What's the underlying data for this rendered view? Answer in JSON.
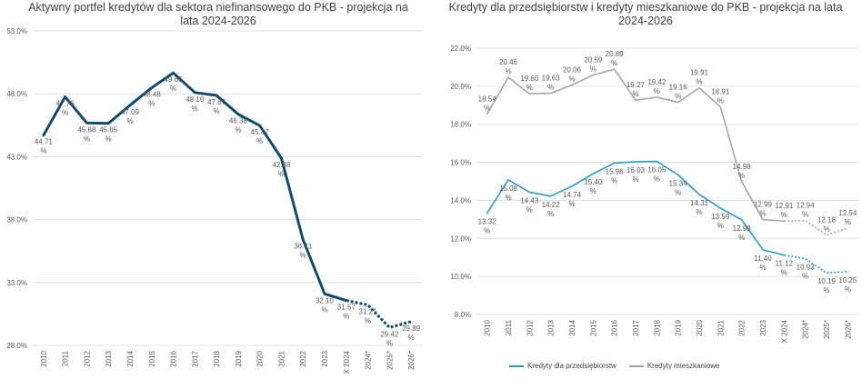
{
  "chart_data": [
    {
      "type": "line",
      "title": "Aktywny portfel kredytów dla sektora niefinansowego do PKB - projekcja na lata 2024-2026",
      "categories": [
        "2010",
        "2011",
        "2012",
        "2013",
        "2014",
        "2015",
        "2016",
        "2017",
        "2018",
        "2019",
        "2020",
        "2021",
        "2022",
        "2023",
        "X 2024",
        "2024*",
        "2025*",
        "2026*"
      ],
      "series": [
        {
          "values": [
            44.71,
            47.76,
            45.68,
            45.65,
            47.09,
            48.48,
            49.66,
            48.1,
            47.87,
            46.38,
            45.47,
            42.88,
            36.41,
            32.1,
            31.57,
            31.21,
            29.42,
            29.89
          ],
          "labels": [
            "44.71\n%",
            "47.76\n%",
            "45.68\n%",
            "45.65\n%",
            "47.09\n%",
            "48.48\n%",
            "49.66\n%",
            "48.10\n%",
            "47.87\n%",
            "46.38\n%",
            "45.47\n%",
            "42.88\n%",
            "36.41\n%",
            "32.10\n%",
            "31.57\n%",
            "31.21\n%",
            "29.42\n%",
            "29.89\n%"
          ],
          "color": "#0f4b6e"
        }
      ],
      "ylim": [
        28,
        53
      ],
      "yticks": [
        28,
        33,
        38,
        43,
        48,
        53
      ],
      "ytick_labels": [
        "28.0%",
        "33.0%",
        "38.0%",
        "43.0%",
        "48.0%",
        "53.0%"
      ],
      "projection_from_index": 14,
      "grid": true
    },
    {
      "type": "line",
      "title": "Kredyty dla przedsiębiorstw i kredyty mieszkaniowe do PKB - projekcja na lata 2024-2026",
      "categories": [
        "2010",
        "2011",
        "2012",
        "2013",
        "2014",
        "2015",
        "2016",
        "2017",
        "2018",
        "2019",
        "2020",
        "2021",
        "2022",
        "2023",
        "X 2024",
        "2024*",
        "2025*",
        "2026*"
      ],
      "series": [
        {
          "name": "Kredyty dla przedsiębiorstw",
          "values": [
            13.32,
            15.08,
            14.43,
            14.22,
            14.74,
            15.4,
            15.96,
            16.03,
            16.05,
            15.34,
            14.31,
            13.59,
            12.98,
            11.4,
            11.12,
            10.93,
            10.19,
            10.25
          ],
          "labels": [
            "13.32\n%",
            "15.08\n%",
            "14.43\n%",
            "14.22\n%",
            "14.74\n%",
            "15.40\n%",
            "15.96\n%",
            "16.03\n%",
            "16.05\n%",
            "15.34\n%",
            "14.31\n%",
            "13.59\n%",
            "12.98\n%",
            "11.40\n%",
            "11.12\n%",
            "10.93\n%",
            "10.19\n%",
            "10.25\n%"
          ],
          "color": "#2a9cc4"
        },
        {
          "name": "Kredyty mieszkaniowe",
          "values": [
            18.54,
            20.46,
            19.6,
            19.63,
            20.06,
            20.59,
            20.89,
            19.27,
            19.42,
            19.16,
            19.91,
            18.91,
            14.98,
            12.99,
            12.91,
            12.94,
            12.18,
            12.54
          ],
          "labels": [
            "18.54\n%",
            "20.46\n%",
            "19.60\n%",
            "19.63\n%",
            "20.06\n%",
            "20.59\n%",
            "20.89\n%",
            "19.27\n%",
            "19.42\n%",
            "19.16\n%",
            "19.91\n%",
            "18.91\n%",
            "14.98\n%",
            "12.99\n%",
            "12.91\n%",
            "12.94\n%",
            "12.18\n%",
            "12.54\n%"
          ],
          "color": "#a6a6a6"
        }
      ],
      "ylim": [
        8,
        22
      ],
      "yticks": [
        8,
        10,
        12,
        14,
        16,
        18,
        20,
        22
      ],
      "ytick_labels": [
        "8.0%",
        "10.0%",
        "12.0%",
        "14.0%",
        "16.0%",
        "18.0%",
        "20.0%",
        "22.0%"
      ],
      "projection_from_index": 14,
      "grid": true,
      "legend": "bottom"
    }
  ]
}
